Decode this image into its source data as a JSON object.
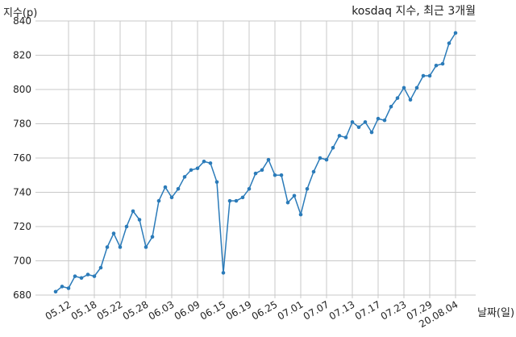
{
  "chart_data": {
    "type": "line",
    "title": "kosdaq 지수, 최근 3개월",
    "xlabel": "날짜(일)",
    "ylabel": "지수(p)",
    "ylim": [
      680,
      840
    ],
    "yticks": [
      680,
      700,
      720,
      740,
      760,
      780,
      800,
      820,
      840
    ],
    "xtick_labels": [
      "05.12",
      "05.18",
      "05.22",
      "05.28",
      "06.03",
      "06.09",
      "06.15",
      "06.19",
      "06.25",
      "07.01",
      "07.07",
      "07.13",
      "07.17",
      "07.23",
      "07.29",
      "20.08.04"
    ],
    "xtick_index": [
      2,
      6,
      10,
      14,
      18,
      22,
      26,
      30,
      34,
      38,
      42,
      46,
      50,
      54,
      58,
      62
    ],
    "grid": true,
    "series": [
      {
        "color": "#2b7bb9",
        "values": [
          682,
          685,
          684,
          691,
          690,
          692,
          691,
          696,
          708,
          716,
          708,
          720,
          729,
          724,
          708,
          714,
          735,
          743,
          737,
          742,
          749,
          753,
          754,
          758,
          757,
          746,
          693,
          735,
          735,
          737,
          742,
          751,
          753,
          759,
          750,
          750,
          734,
          738,
          727,
          742,
          752,
          760,
          759,
          766,
          773,
          772,
          781,
          778,
          781,
          775,
          783,
          782,
          790,
          795,
          801,
          794,
          801,
          808,
          808,
          814,
          815,
          827,
          833
        ]
      }
    ]
  }
}
